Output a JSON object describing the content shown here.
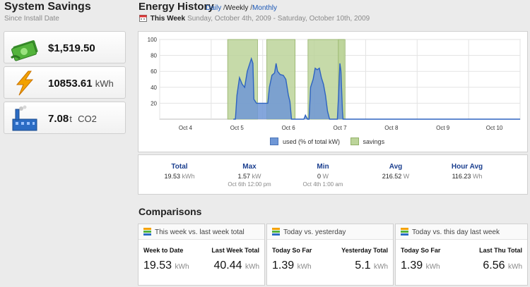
{
  "savings": {
    "title": "System Savings",
    "subtitle": "Since Install Date",
    "money": {
      "value": "$1,519.50",
      "icon": "money-icon"
    },
    "energy": {
      "value": "10853.61",
      "unit": "kWh",
      "icon": "lightning-icon"
    },
    "co2": {
      "value": "7.08",
      "unit_t": "t",
      "unit": "CO2",
      "icon": "factory-icon"
    }
  },
  "history": {
    "title": "Energy History",
    "links": {
      "daily": "Daily",
      "sep1": "/",
      "weekly": "Weekly",
      "sep2": "/",
      "monthly": "Monthly"
    },
    "week_label": "This Week",
    "week_dates": "Sunday, October 4th, 2009 - Saturday, October 10th, 2009"
  },
  "chart_data": {
    "type": "area",
    "x_label_ticks": [
      "Oct 4",
      "Oct 5",
      "Oct 6",
      "Oct 7",
      "Oct 8",
      "Oct 9",
      "Oct 10"
    ],
    "y_ticks": [
      20,
      40,
      60,
      80,
      100
    ],
    "ylim": [
      0,
      100
    ],
    "grid": true,
    "legend_position": "bottom",
    "series": [
      {
        "name": "used (% of total kW)",
        "color": "#6f97d6",
        "points": [
          [
            0.93,
            0
          ],
          [
            0.97,
            0
          ],
          [
            1.0,
            30
          ],
          [
            1.05,
            52
          ],
          [
            1.1,
            44
          ],
          [
            1.15,
            40
          ],
          [
            1.2,
            60
          ],
          [
            1.25,
            70
          ],
          [
            1.28,
            76
          ],
          [
            1.31,
            70
          ],
          [
            1.33,
            25
          ],
          [
            1.38,
            20
          ],
          [
            1.6,
            20
          ],
          [
            1.63,
            40
          ],
          [
            1.68,
            55
          ],
          [
            1.73,
            58
          ],
          [
            1.76,
            70
          ],
          [
            1.79,
            60
          ],
          [
            1.84,
            56
          ],
          [
            1.9,
            55
          ],
          [
            1.95,
            50
          ],
          [
            2.0,
            30
          ],
          [
            2.03,
            22
          ],
          [
            2.06,
            0
          ],
          [
            2.3,
            0
          ],
          [
            2.33,
            5
          ],
          [
            2.37,
            0
          ],
          [
            2.4,
            0
          ],
          [
            2.43,
            40
          ],
          [
            2.48,
            50
          ],
          [
            2.52,
            64
          ],
          [
            2.56,
            62
          ],
          [
            2.6,
            64
          ],
          [
            2.64,
            52
          ],
          [
            2.68,
            44
          ],
          [
            2.72,
            30
          ],
          [
            2.76,
            10
          ],
          [
            2.8,
            0
          ],
          [
            2.95,
            0
          ],
          [
            2.97,
            25
          ],
          [
            3.0,
            70
          ],
          [
            3.02,
            60
          ],
          [
            3.05,
            10
          ],
          [
            3.06,
            0
          ],
          [
            6.5,
            0
          ]
        ]
      },
      {
        "name": "savings",
        "color": "#bcd49a",
        "ranges": [
          [
            0.82,
            1.4
          ],
          [
            1.58,
            2.13
          ],
          [
            2.38,
            3.08
          ],
          [
            2.97,
            3.1
          ]
        ]
      }
    ]
  },
  "stats": [
    {
      "label": "Total",
      "value": "19.53",
      "unit": "kWh",
      "sub": ""
    },
    {
      "label": "Max",
      "value": "1.57",
      "unit": "kW",
      "sub": "Oct 6th 12:00 pm"
    },
    {
      "label": "Min",
      "value": "0",
      "unit": "W",
      "sub": "Oct 4th 1:00 am"
    },
    {
      "label": "Avg",
      "value": "216.52",
      "unit": "W",
      "sub": ""
    },
    {
      "label": "Hour Avg",
      "value": "116.23",
      "unit": "Wh",
      "sub": ""
    }
  ],
  "comparisons": {
    "title": "Comparisons",
    "boxes": [
      {
        "header": "This week vs. last week total",
        "left_label": "Week to Date",
        "left_value": "19.53",
        "left_unit": "kWh",
        "right_label": "Last Week Total",
        "right_value": "40.44",
        "right_unit": "kWh"
      },
      {
        "header": "Today vs. yesterday",
        "left_label": "Today So Far",
        "left_value": "1.39",
        "left_unit": "kWh",
        "right_label": "Yesterday Total",
        "right_value": "5.1",
        "right_unit": "kWh"
      },
      {
        "header": "Today vs. this day last week",
        "left_label": "Today So Far",
        "left_value": "1.39",
        "left_unit": "kWh",
        "right_label": "Last Thu Total",
        "right_value": "6.56",
        "right_unit": "kWh"
      }
    ]
  }
}
